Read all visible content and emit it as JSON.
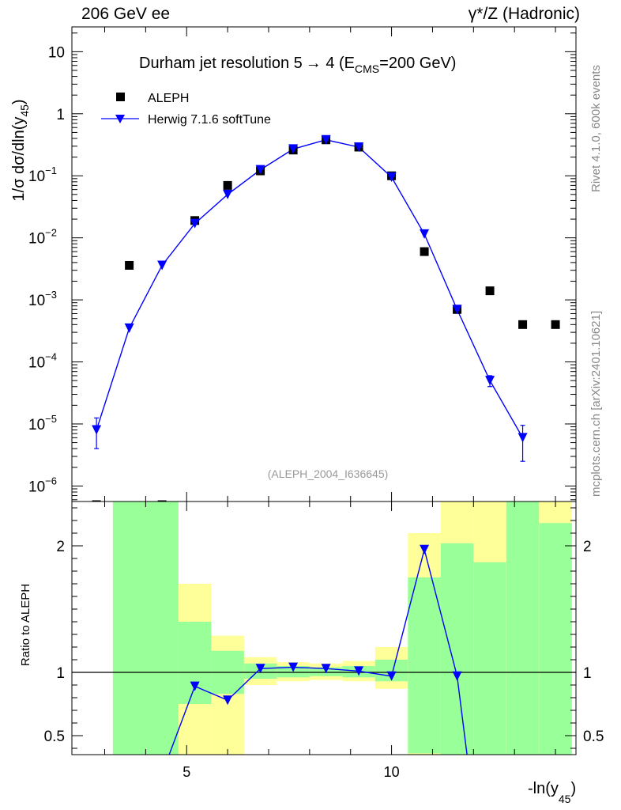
{
  "header": {
    "left": "206 GeV ee",
    "right": "γ*/Z (Hadronic)"
  },
  "side_labels": {
    "rivet": "Rivet 4.1.0,  600k events",
    "mcplots": "mcplots.cern.ch [arXiv:2401.10621]"
  },
  "chart_data": {
    "type": "scatter",
    "title_text": "Durham jet resolution 5",
    "title_rest": " 4 (E",
    "title_sub": "CMS",
    "title_end": "=200 GeV)",
    "arrow": "→",
    "analysis_id": "(ALEPH_2004_I636645)",
    "ylabel_main": "1/σ  dσ/dln(y",
    "ylabel_main_sub": "45",
    "ylabel_main_end": ")",
    "ylabel_ratio": "Ratio to ALEPH",
    "xlabel": "-ln(y",
    "xlabel_sub": "45",
    "xlabel_end": ")",
    "x_range": [
      2.2,
      14.5
    ],
    "y_range_main_log10": [
      -6.25,
      1.4
    ],
    "y_range_ratio": [
      0.35,
      2.35
    ],
    "x_ticks": [
      5,
      10
    ],
    "x_tick_labels": [
      "5",
      "10"
    ],
    "y_ticks_main": [
      10,
      1,
      0.1,
      0.01,
      0.001,
      0.0001,
      1e-05,
      1e-06
    ],
    "y_tick_labels_main": [
      {
        "base": "10",
        "exp": ""
      },
      {
        "base": "1",
        "exp": ""
      },
      {
        "base": "10",
        "exp": "−1"
      },
      {
        "base": "10",
        "exp": "−2"
      },
      {
        "base": "10",
        "exp": "−3"
      },
      {
        "base": "10",
        "exp": "−4"
      },
      {
        "base": "10",
        "exp": "−5"
      },
      {
        "base": "10",
        "exp": "−6"
      }
    ],
    "y_ticks_ratio": [
      0.5,
      1,
      2
    ],
    "y_tick_labels_ratio": [
      "0.5",
      "1",
      "2"
    ],
    "legend": [
      {
        "name": "ALEPH",
        "marker": "square",
        "color": "#000000"
      },
      {
        "name": "Herwig 7.1.6 softTune",
        "marker": "triangle-down",
        "color": "#0000ff"
      }
    ],
    "series": [
      {
        "name": "ALEPH",
        "x": [
          2.8,
          3.6,
          4.4,
          5.2,
          6.0,
          6.8,
          7.6,
          8.4,
          9.2,
          10.0,
          10.8,
          11.6,
          12.4,
          13.2,
          14.0
        ],
        "values": [
          5e-07,
          0.0036,
          5e-07,
          0.019,
          0.07,
          0.12,
          0.26,
          0.38,
          0.29,
          0.1,
          0.006,
          0.0007,
          0.0014,
          0.0004,
          0.0004
        ]
      },
      {
        "name": "Herwig 7.1.6 softTune",
        "x": [
          2.8,
          3.6,
          4.4,
          5.2,
          6.0,
          6.8,
          7.6,
          8.4,
          9.2,
          10.0,
          10.8,
          11.6,
          12.4,
          13.2
        ],
        "values": [
          8e-06,
          0.00035,
          0.0036,
          0.017,
          0.05,
          0.125,
          0.27,
          0.38,
          0.29,
          0.095,
          0.0115,
          0.0007,
          5e-05,
          6e-06
        ],
        "err_lo": [
          4e-06,
          0,
          0,
          0,
          0,
          0,
          0,
          0,
          0,
          0,
          0,
          0,
          1e-05,
          3.5e-06
        ],
        "err_hi": [
          4.5e-06,
          0,
          0,
          0,
          0,
          0,
          0,
          0,
          0,
          0,
          0,
          0,
          1e-05,
          3.5e-06
        ]
      }
    ],
    "ratio_series": {
      "name": "Herwig 7.1.6 softTune / ALEPH",
      "x": [
        4.4,
        5.2,
        6.0,
        6.8,
        7.6,
        8.4,
        9.2,
        10.0,
        10.8,
        11.6,
        11.9
      ],
      "values": [
        0.2,
        0.89,
        0.78,
        1.03,
        1.04,
        1.03,
        1.01,
        0.97,
        1.97,
        0.97,
        0.2
      ],
      "err": [
        0,
        0,
        0,
        0,
        0,
        0,
        0,
        0,
        0,
        0.03,
        0
      ]
    },
    "ratio_bands": [
      {
        "x0": 3.2,
        "x1": 4.8,
        "yellow": [
          0.2,
          2.45
        ],
        "green": [
          0.2,
          2.38
        ]
      },
      {
        "x0": 4.8,
        "x1": 5.6,
        "yellow": [
          0.2,
          1.7
        ],
        "green": [
          0.75,
          1.4
        ]
      },
      {
        "x0": 5.6,
        "x1": 6.4,
        "yellow": [
          0.2,
          1.29
        ],
        "green": [
          0.83,
          1.17
        ]
      },
      {
        "x0": 6.4,
        "x1": 7.2,
        "yellow": [
          0.9,
          1.12
        ],
        "green": [
          0.95,
          1.07
        ]
      },
      {
        "x0": 7.2,
        "x1": 8.0,
        "yellow": [
          0.93,
          1.08
        ],
        "green": [
          0.96,
          1.05
        ]
      },
      {
        "x0": 8.0,
        "x1": 8.8,
        "yellow": [
          0.94,
          1.07
        ],
        "green": [
          0.97,
          1.04
        ]
      },
      {
        "x0": 8.8,
        "x1": 9.6,
        "yellow": [
          0.93,
          1.09
        ],
        "green": [
          0.96,
          1.05
        ]
      },
      {
        "x0": 9.6,
        "x1": 10.4,
        "yellow": [
          0.87,
          1.2
        ],
        "green": [
          0.93,
          1.1
        ]
      },
      {
        "x0": 10.4,
        "x1": 11.2,
        "yellow": [
          0.2,
          2.1
        ],
        "green": [
          0.36,
          1.75
        ]
      },
      {
        "x0": 11.2,
        "x1": 12.0,
        "yellow": [
          0.2,
          2.45
        ],
        "green": [
          0.2,
          2.02
        ]
      },
      {
        "x0": 12.0,
        "x1": 12.8,
        "yellow": [
          0.2,
          2.45
        ],
        "green": [
          0.2,
          1.87
        ]
      },
      {
        "x0": 12.8,
        "x1": 13.6,
        "yellow": [
          0.2,
          2.45
        ],
        "green": [
          0.2,
          2.45
        ]
      },
      {
        "x0": 13.6,
        "x1": 14.4,
        "yellow": [
          0.2,
          2.45
        ],
        "green": [
          0.2,
          2.18
        ]
      }
    ],
    "band_colors": {
      "yellow": "#ffff99",
      "green": "#99ff99"
    },
    "line_color": "#0000ff",
    "data_color": "#000000"
  }
}
